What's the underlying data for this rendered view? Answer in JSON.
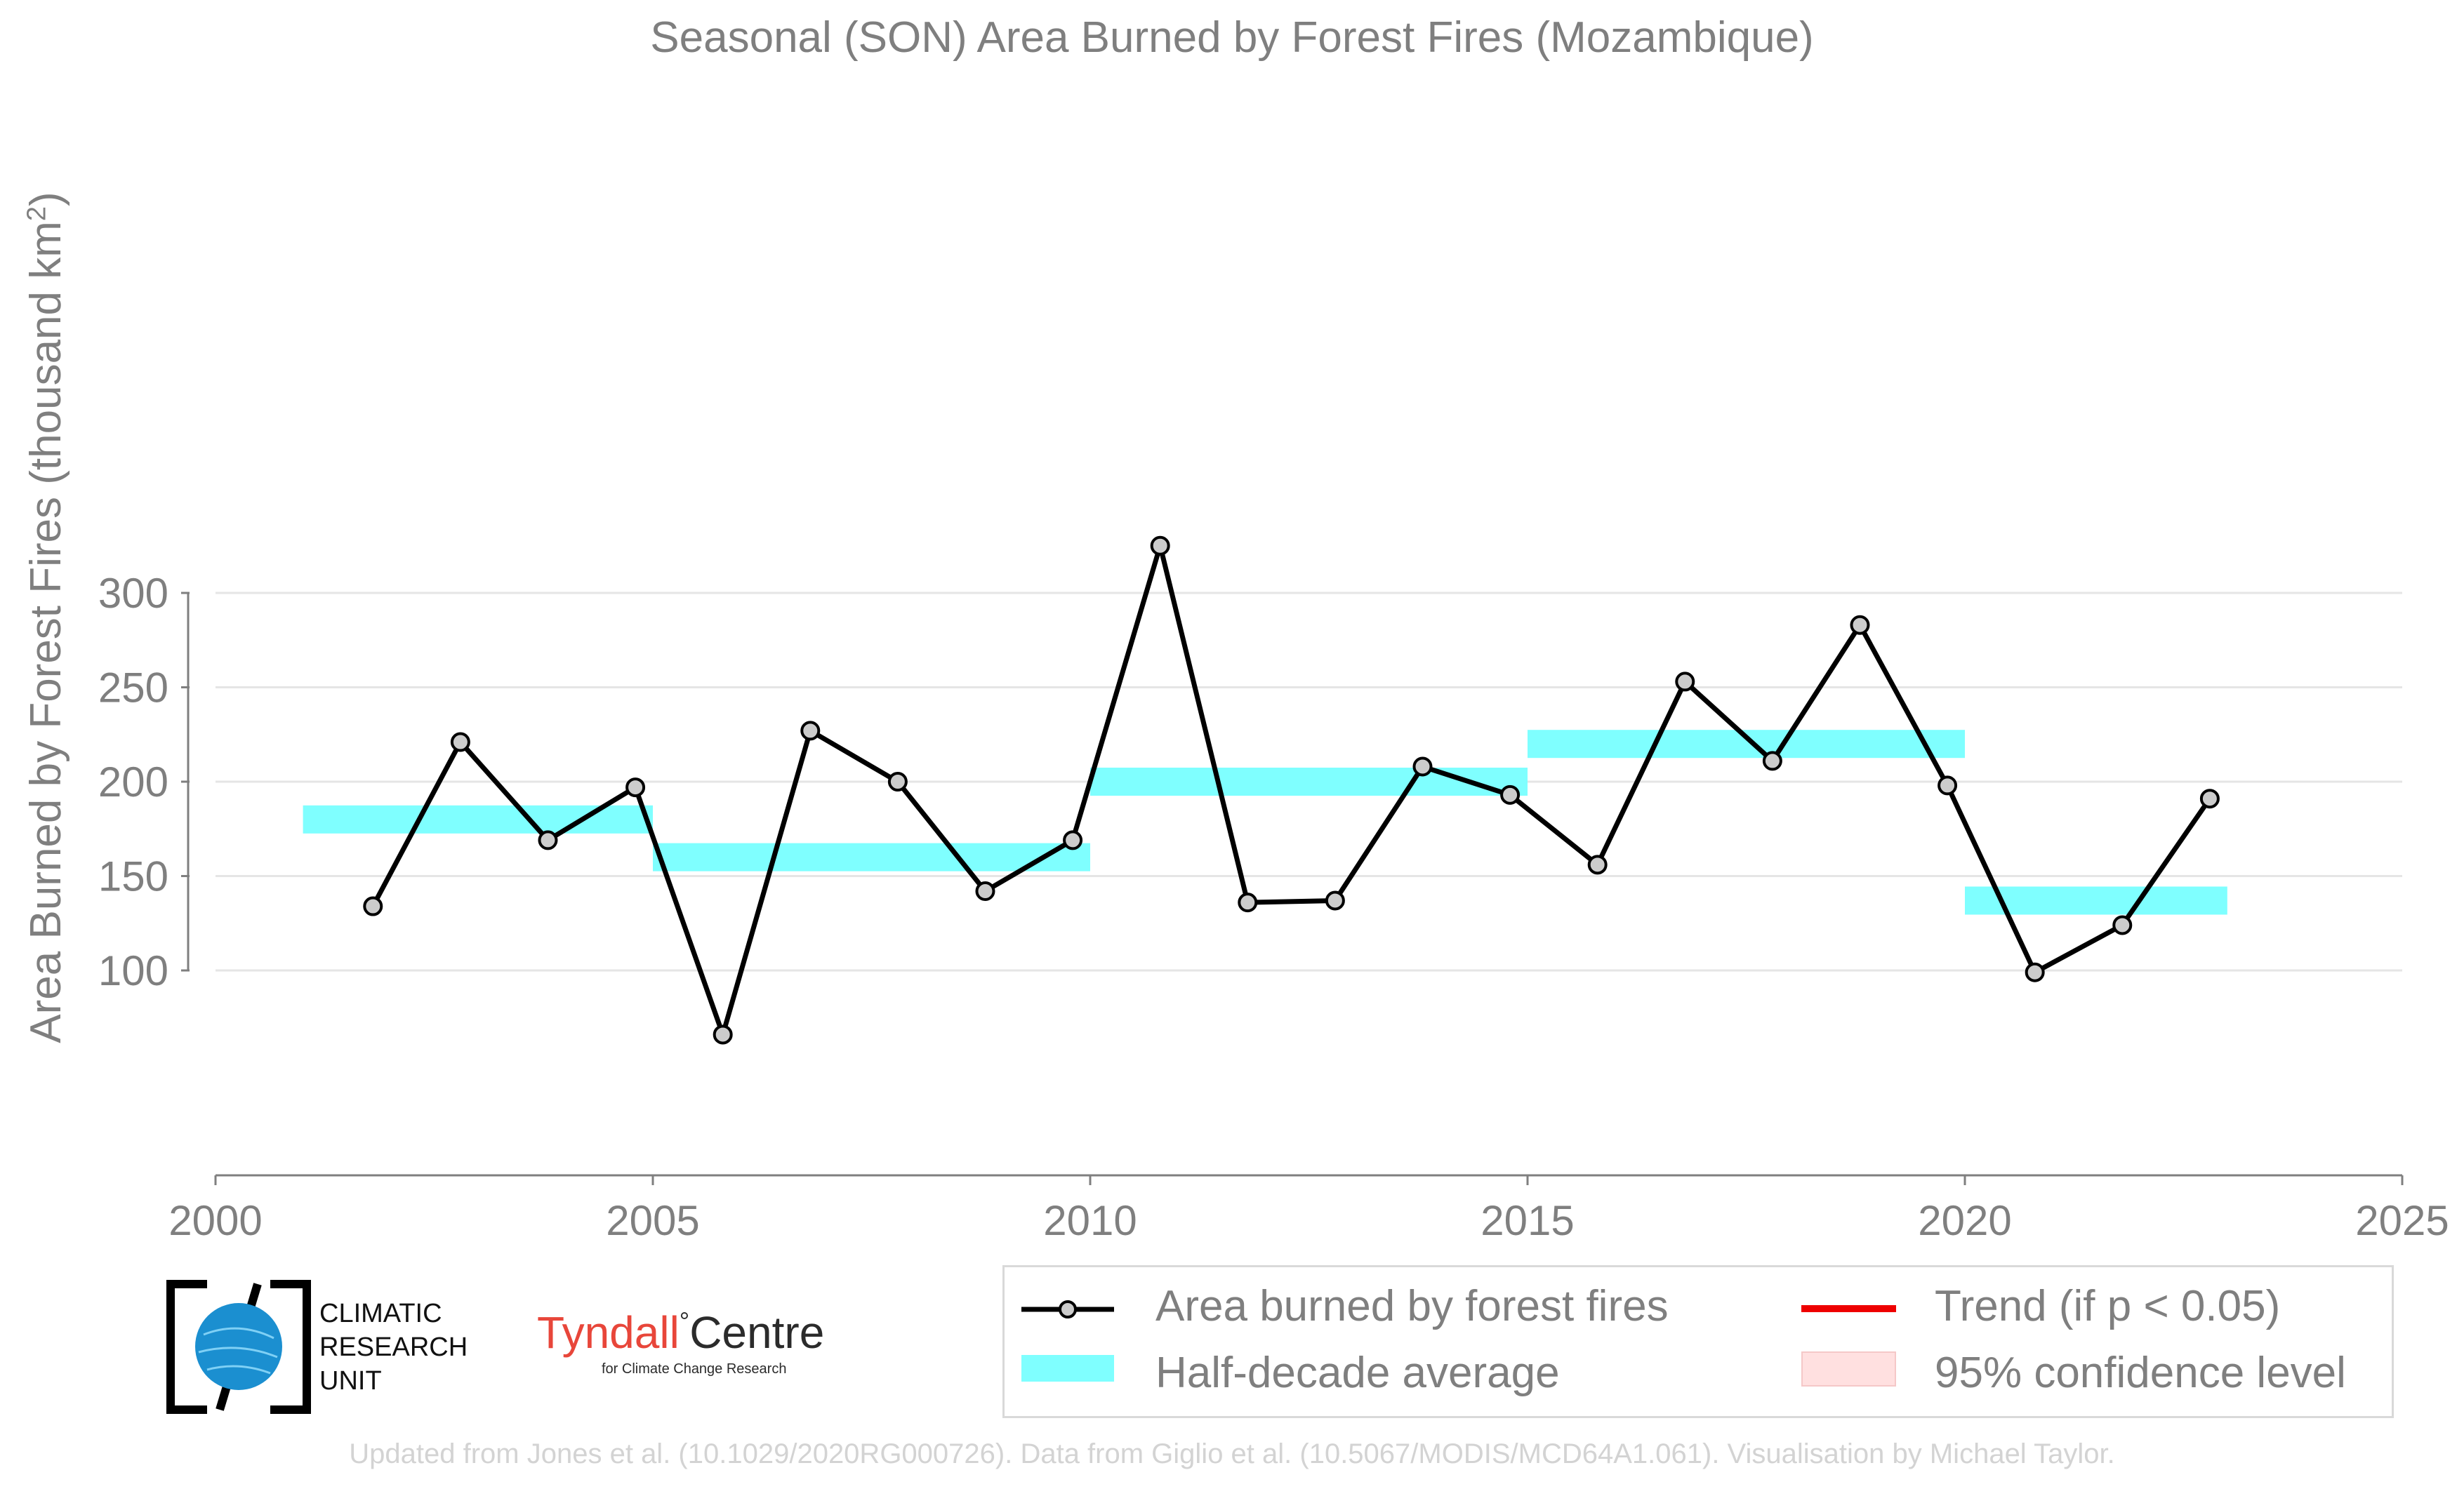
{
  "title": "Seasonal (SON) Area Burned by Forest Fires (Mozambique)",
  "ylabel_main": "Area Burned by Forest Fires (thousand km",
  "ylabel_sup": "2",
  "ylabel_close": ")",
  "footer": "Updated from Jones et al. (10.1029/2020RG000726). Data from Giglio et al. (10.5067/MODIS/MCD64A1.061). Visualisation by Michael Taylor.",
  "legend": {
    "series": "Area burned by forest fires",
    "trend": "Trend (if p < 0.05)",
    "halfdecade": "Half-decade average",
    "confidence": "95% confidence level"
  },
  "logos": {
    "cru_line1": "CLIMATIC",
    "cru_line2": "RESEARCH",
    "cru_line3": "UNIT",
    "tyndall_name": "Tyndall",
    "tyndall_degree": "°",
    "tyndall_centre": "Centre",
    "tyndall_sub": "for Climate Change Research"
  },
  "colors": {
    "line": "#000000",
    "marker_fill": "#cccccc",
    "halfdecade": "#7fffff",
    "trend": "#ee0000",
    "confidence": "#ffe0e0",
    "grid": "#e5e5e5",
    "axis_text": "#7f7f7f"
  },
  "chart_data": {
    "type": "line",
    "title": "Seasonal (SON) Area Burned by Forest Fires (Mozambique)",
    "ylabel": "Area Burned by Forest Fires (thousand km²)",
    "xlim": [
      2000,
      2025
    ],
    "ylim": [
      50,
      330
    ],
    "xticks": [
      2000,
      2005,
      2010,
      2015,
      2020,
      2025
    ],
    "yticks": [
      100,
      150,
      200,
      250,
      300
    ],
    "grid": "horizontal",
    "legend_position": "bottom-right",
    "series": [
      {
        "name": "Area burned by forest fires",
        "x": [
          2001.8,
          2002.8,
          2003.8,
          2004.8,
          2005.8,
          2006.8,
          2007.8,
          2008.8,
          2009.8,
          2010.8,
          2011.8,
          2012.8,
          2013.8,
          2014.8,
          2015.8,
          2016.8,
          2017.8,
          2018.8,
          2019.8,
          2020.8,
          2021.8,
          2022.8
        ],
        "values": [
          134,
          221,
          169,
          197,
          66,
          227,
          200,
          142,
          169,
          325,
          136,
          137,
          208,
          193,
          156,
          253,
          211,
          283,
          198,
          99,
          124,
          191
        ]
      }
    ],
    "half_decade_averages": [
      {
        "x_start": 2001,
        "x_end": 2005,
        "value": 180
      },
      {
        "x_start": 2005,
        "x_end": 2010,
        "value": 160
      },
      {
        "x_start": 2010,
        "x_end": 2015,
        "value": 200
      },
      {
        "x_start": 2015,
        "x_end": 2020,
        "value": 220
      },
      {
        "x_start": 2020,
        "x_end": 2023,
        "value": 137
      }
    ]
  }
}
